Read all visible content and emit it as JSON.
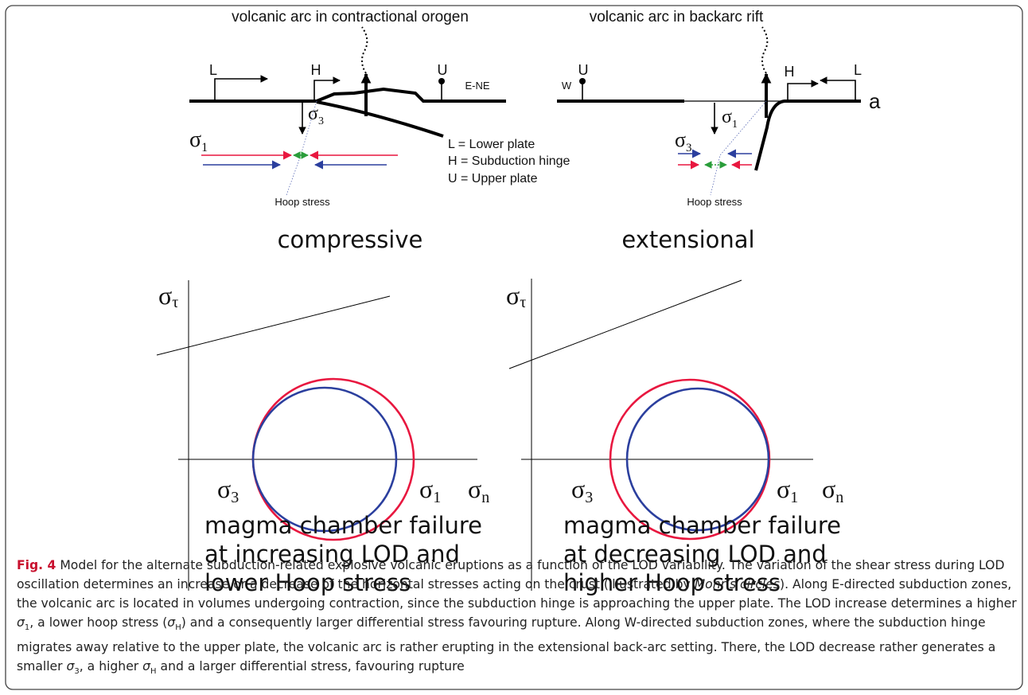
{
  "left_panel": {
    "title": "volcanic arc in contractional orogen",
    "labels": {
      "L": "L",
      "H": "H",
      "U": "U",
      "direction": "E-NE"
    },
    "sigma3": {
      "symbol": "σ",
      "sub": "3"
    },
    "sigma1": {
      "symbol": "σ",
      "sub": "1"
    },
    "hoop": "Hoop stress",
    "regime": "compressive"
  },
  "legend": [
    "L = Lower plate",
    "H = Subduction hinge",
    "U = Upper plate"
  ],
  "right_panel": {
    "title": "volcanic arc in backarc rift",
    "labels": {
      "W": "W",
      "U": "U",
      "H": "H",
      "L": "L",
      "panel": "a"
    },
    "sigma1": {
      "symbol": "σ",
      "sub": "1"
    },
    "sigma3": {
      "symbol": "σ",
      "sub": "3"
    },
    "hoop": "Hoop stress",
    "regime": "extensional"
  },
  "mohr_left": {
    "axis_y": {
      "symbol": "σ",
      "sub": "τ"
    },
    "sigma3": {
      "symbol": "σ",
      "sub": "3"
    },
    "sigma1": {
      "symbol": "σ",
      "sub": "1"
    },
    "axis_x": {
      "symbol": "σ",
      "sub": "n"
    },
    "caption": [
      "magma chamber failure",
      "at increasing LOD and",
      "lower Hoop stress"
    ]
  },
  "mohr_right": {
    "axis_y": {
      "symbol": "σ",
      "sub": "τ"
    },
    "sigma3": {
      "symbol": "σ",
      "sub": "3"
    },
    "sigma1": {
      "symbol": "σ",
      "sub": "1"
    },
    "axis_x": {
      "symbol": "σ",
      "sub": "n"
    },
    "caption": [
      "magma chamber failure",
      "at decreasing LOD and",
      "higher Hoop stress"
    ]
  },
  "caption": {
    "label": "Fig. 4",
    "runs": [
      " Model for the alternate subduction-related explosive volcanic eruptions as a function of the LOD variability. The variation of the shear stress during LOD oscillation determines an increase or a decrease of the horizontal stresses acting on the crust (illustrated by ",
      "Mohr’s circles",
      "). Along E-directed subduction zones, the volcanic arc is located in volumes undergoing contraction, since the subduction hinge is approaching the upper plate. The LOD increase determines a higher ",
      "σ",
      "1",
      ", a lower hoop stress (",
      "σ",
      "H",
      ") and a consequently larger differential stress favouring rupture. Along W-directed subduction zones, where the subduction hinge migrates away relative to the upper plate, the volcanic arc is rather erupting in the extensional back-arc setting. There, the LOD decrease rather generates a smaller ",
      "σ",
      "3",
      ", a higher ",
      "σ",
      "H",
      " and a larger differential stress, favouring rupture"
    ]
  }
}
